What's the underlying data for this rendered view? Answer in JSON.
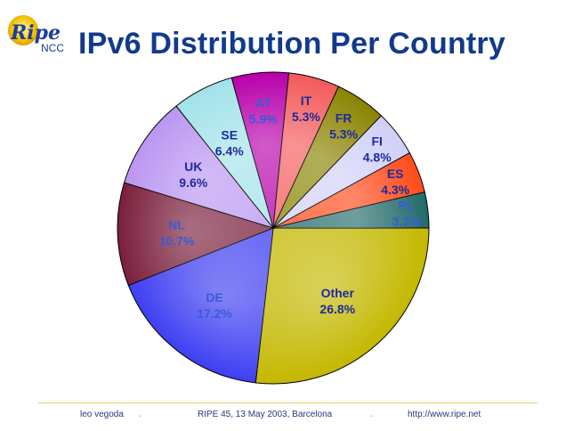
{
  "logo": {
    "text_main": "Ripe",
    "text_sub": "NCC"
  },
  "title": "IPv6 Distribution Per Country",
  "chart_data": {
    "type": "pie",
    "title": "IPv6 Distribution Per Country",
    "slices": [
      {
        "label": "Other",
        "value": 26.8,
        "display": "26.8%",
        "color": "#c4b800"
      },
      {
        "label": "DE",
        "value": 17.2,
        "display": "17.2%",
        "color": "#3f3ff2"
      },
      {
        "label": "NL",
        "value": 10.7,
        "display": "10.7%",
        "color": "#7a1f3c"
      },
      {
        "label": "UK",
        "value": 9.6,
        "display": "9.6%",
        "color": "#bb96f2"
      },
      {
        "label": "SE",
        "value": 6.4,
        "display": "6.4%",
        "color": "#a2e2ea"
      },
      {
        "label": "AT",
        "value": 5.9,
        "display": "5.9%",
        "color": "#b800aa"
      },
      {
        "label": "IT",
        "value": 5.3,
        "display": "5.3%",
        "color": "#f45a5a"
      },
      {
        "label": "FR",
        "value": 5.3,
        "display": "5.3%",
        "color": "#8a8400"
      },
      {
        "label": "FI",
        "value": 4.8,
        "display": "4.8%",
        "color": "#d0d0f8"
      },
      {
        "label": "ES",
        "value": 4.3,
        "display": "4.3%",
        "color": "#ff4a18"
      },
      {
        "label": "PL",
        "value": 3.7,
        "display": "3.7%",
        "color": "#226a6a"
      }
    ]
  },
  "footer": {
    "author": "leo vegoda",
    "event": "RIPE 45, 13 May 2003, Barcelona",
    "url": "http://www.ripe.net"
  }
}
